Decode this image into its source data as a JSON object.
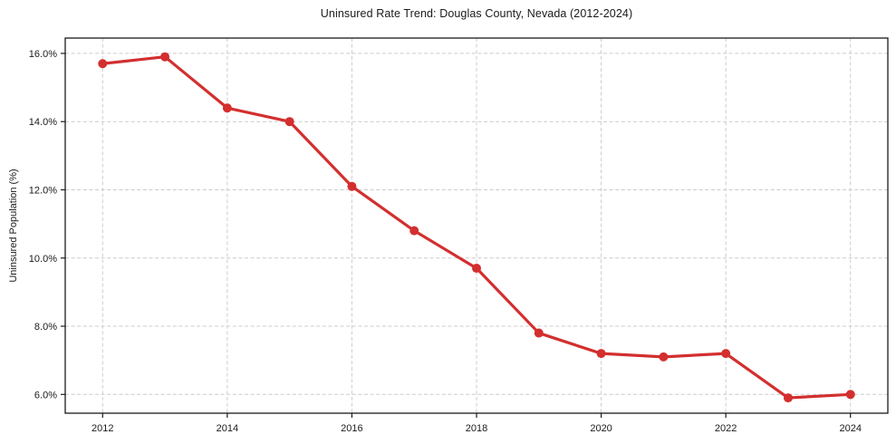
{
  "chart_data": {
    "type": "line",
    "title": "Uninsured Rate Trend: Douglas County, Nevada (2012-2024)",
    "xlabel": "",
    "ylabel": "Uninsured Population (%)",
    "x": [
      2012,
      2013,
      2014,
      2015,
      2016,
      2017,
      2018,
      2019,
      2020,
      2021,
      2022,
      2023,
      2024
    ],
    "values": [
      15.7,
      15.9,
      14.4,
      14.0,
      12.1,
      10.8,
      9.7,
      7.8,
      7.2,
      7.1,
      7.2,
      5.9,
      6.0
    ],
    "xticks": [
      2012,
      2014,
      2016,
      2018,
      2020,
      2022,
      2024
    ],
    "xtick_labels": [
      "2012",
      "2014",
      "2016",
      "2018",
      "2020",
      "2022",
      "2024"
    ],
    "yticks": [
      6,
      8,
      10,
      12,
      14,
      16
    ],
    "ytick_labels": [
      "6.0%",
      "8.0%",
      "10.0%",
      "12.0%",
      "14.0%",
      "16.0%"
    ],
    "xlim": [
      2011.4,
      2024.6
    ],
    "ylim": [
      5.45,
      16.45
    ],
    "grid": true,
    "grid_style": "dashed",
    "legend": "none",
    "colors": {
      "line": "#d32f2f",
      "marker": "#d32f2f",
      "grid": "#cccccc",
      "axis": "#1a1a1a",
      "text": "#1a1a1a",
      "background": "#ffffff"
    }
  }
}
